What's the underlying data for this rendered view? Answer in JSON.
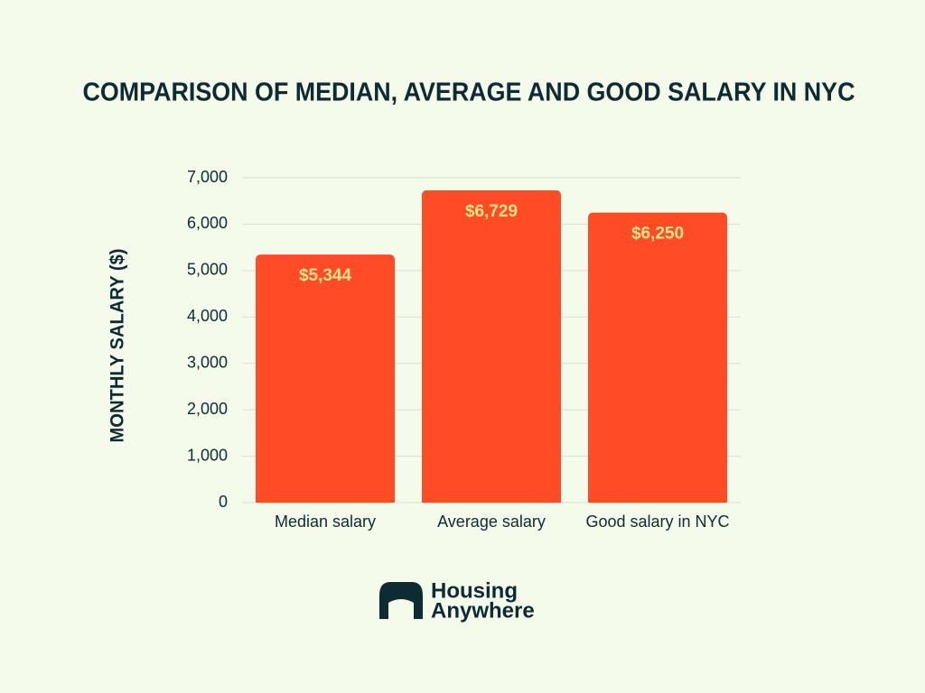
{
  "chart_data": {
    "type": "bar",
    "title": "COMPARISON OF MEDIAN, AVERAGE AND GOOD SALARY IN NYC",
    "y_label": "MONTHLY SALARY ($)",
    "categories": [
      "Median salary",
      "Average salary",
      "Good salary in NYC"
    ],
    "values": [
      5344,
      6729,
      6250
    ],
    "value_labels": [
      "$5,344",
      "$6,729",
      "$6,250"
    ],
    "color": "#ff4b26",
    "ylim": [
      0,
      7000
    ],
    "yticks": [
      0,
      {
        "value": 1000,
        "label": "1,000"
      },
      {
        "value": 2000,
        "label": "2,000"
      },
      {
        "value": 3000,
        "label": "3,000"
      },
      {
        "value": 4000,
        "label": "4,000"
      },
      {
        "value": 5000,
        "label": "5,000"
      },
      {
        "value": 6000,
        "label": "6,000"
      },
      {
        "value": 7000,
        "label": "7,000"
      }
    ],
    "grid": true
  },
  "logo": {
    "line1": "Housing",
    "line2": "Anywhere"
  }
}
